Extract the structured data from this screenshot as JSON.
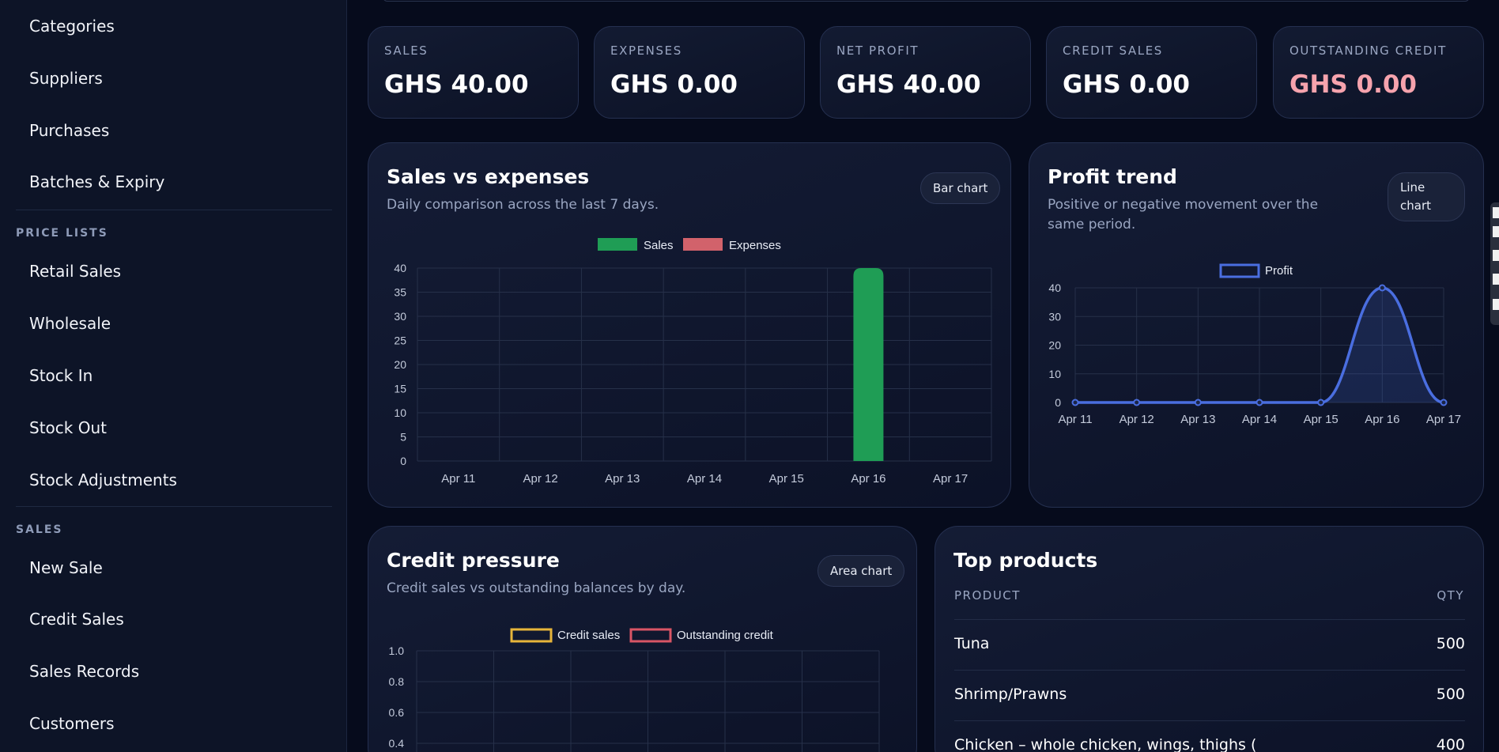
{
  "sidebar": {
    "items": [
      {
        "label": "Categories"
      },
      {
        "label": "Suppliers"
      },
      {
        "label": "Purchases"
      },
      {
        "label": "Batches & Expiry"
      }
    ],
    "section_price": "PRICE LISTS",
    "price_items": [
      {
        "label": "Retail Sales"
      },
      {
        "label": "Wholesale"
      },
      {
        "label": "Stock In"
      },
      {
        "label": "Stock Out"
      },
      {
        "label": "Stock Adjustments"
      }
    ],
    "section_sales": "SALES",
    "sales_items": [
      {
        "label": "New Sale"
      },
      {
        "label": "Credit Sales"
      },
      {
        "label": "Sales Records"
      },
      {
        "label": "Customers"
      }
    ]
  },
  "kpis": [
    {
      "label": "SALES",
      "value": "GHS 40.00"
    },
    {
      "label": "EXPENSES",
      "value": "GHS 0.00"
    },
    {
      "label": "NET PROFIT",
      "value": "GHS 40.00"
    },
    {
      "label": "CREDIT SALES",
      "value": "GHS 0.00"
    },
    {
      "label": "OUTSTANDING CREDIT",
      "value": "GHS 0.00"
    }
  ],
  "colors": {
    "sales": "#1f9d55",
    "expenses": "#d2626b",
    "profit": "#4a6ee0",
    "credit_sales": "#e7b53a",
    "outstanding_credit": "#d95565",
    "negative_value": "#f6a3ad"
  },
  "cards": {
    "sales_vs_expenses": {
      "title": "Sales vs expenses",
      "subtitle": "Daily comparison across the last 7 days.",
      "toggle": "Bar chart"
    },
    "profit_trend": {
      "title": "Profit trend",
      "subtitle": "Positive or negative movement over the same period.",
      "toggle": "Line chart"
    },
    "credit_pressure": {
      "title": "Credit pressure",
      "subtitle": "Credit sales vs outstanding balances by day.",
      "toggle": "Area chart"
    },
    "top_products": {
      "title": "Top products",
      "col_product": "PRODUCT",
      "col_qty": "QTY",
      "rows": [
        {
          "name": "Tuna",
          "qty": "500"
        },
        {
          "name": "Shrimp/Prawns",
          "qty": "500"
        },
        {
          "name": "Chicken – whole chicken, wings, thighs (",
          "qty": "400"
        }
      ]
    }
  },
  "chart_data": [
    {
      "type": "bar",
      "categories": [
        "Apr 11",
        "Apr 12",
        "Apr 13",
        "Apr 14",
        "Apr 15",
        "Apr 16",
        "Apr 17"
      ],
      "series": [
        {
          "name": "Sales",
          "values": [
            0,
            0,
            0,
            0,
            0,
            40,
            0
          ]
        },
        {
          "name": "Expenses",
          "values": [
            0,
            0,
            0,
            0,
            0,
            0,
            0
          ]
        }
      ],
      "yticks": [
        "0",
        "5",
        "10",
        "15",
        "20",
        "25",
        "30",
        "35",
        "40"
      ],
      "ylim": [
        0,
        40
      ],
      "legend": "top-center",
      "grid": true
    },
    {
      "type": "line",
      "categories": [
        "Apr 11",
        "Apr 12",
        "Apr 13",
        "Apr 14",
        "Apr 15",
        "Apr 16",
        "Apr 17"
      ],
      "series": [
        {
          "name": "Profit",
          "values": [
            0,
            0,
            0,
            0,
            0,
            40,
            0
          ]
        }
      ],
      "yticks": [
        "0",
        "10",
        "20",
        "30",
        "40"
      ],
      "ylim": [
        0,
        40
      ],
      "legend": "top-center",
      "grid": true
    },
    {
      "type": "area",
      "series": [
        {
          "name": "Credit sales"
        },
        {
          "name": "Outstanding credit"
        }
      ],
      "yticks": [
        "0.4",
        "0.6",
        "0.8",
        "1.0"
      ],
      "ylim": [
        0,
        1
      ],
      "legend": "top-center",
      "grid": true
    }
  ]
}
